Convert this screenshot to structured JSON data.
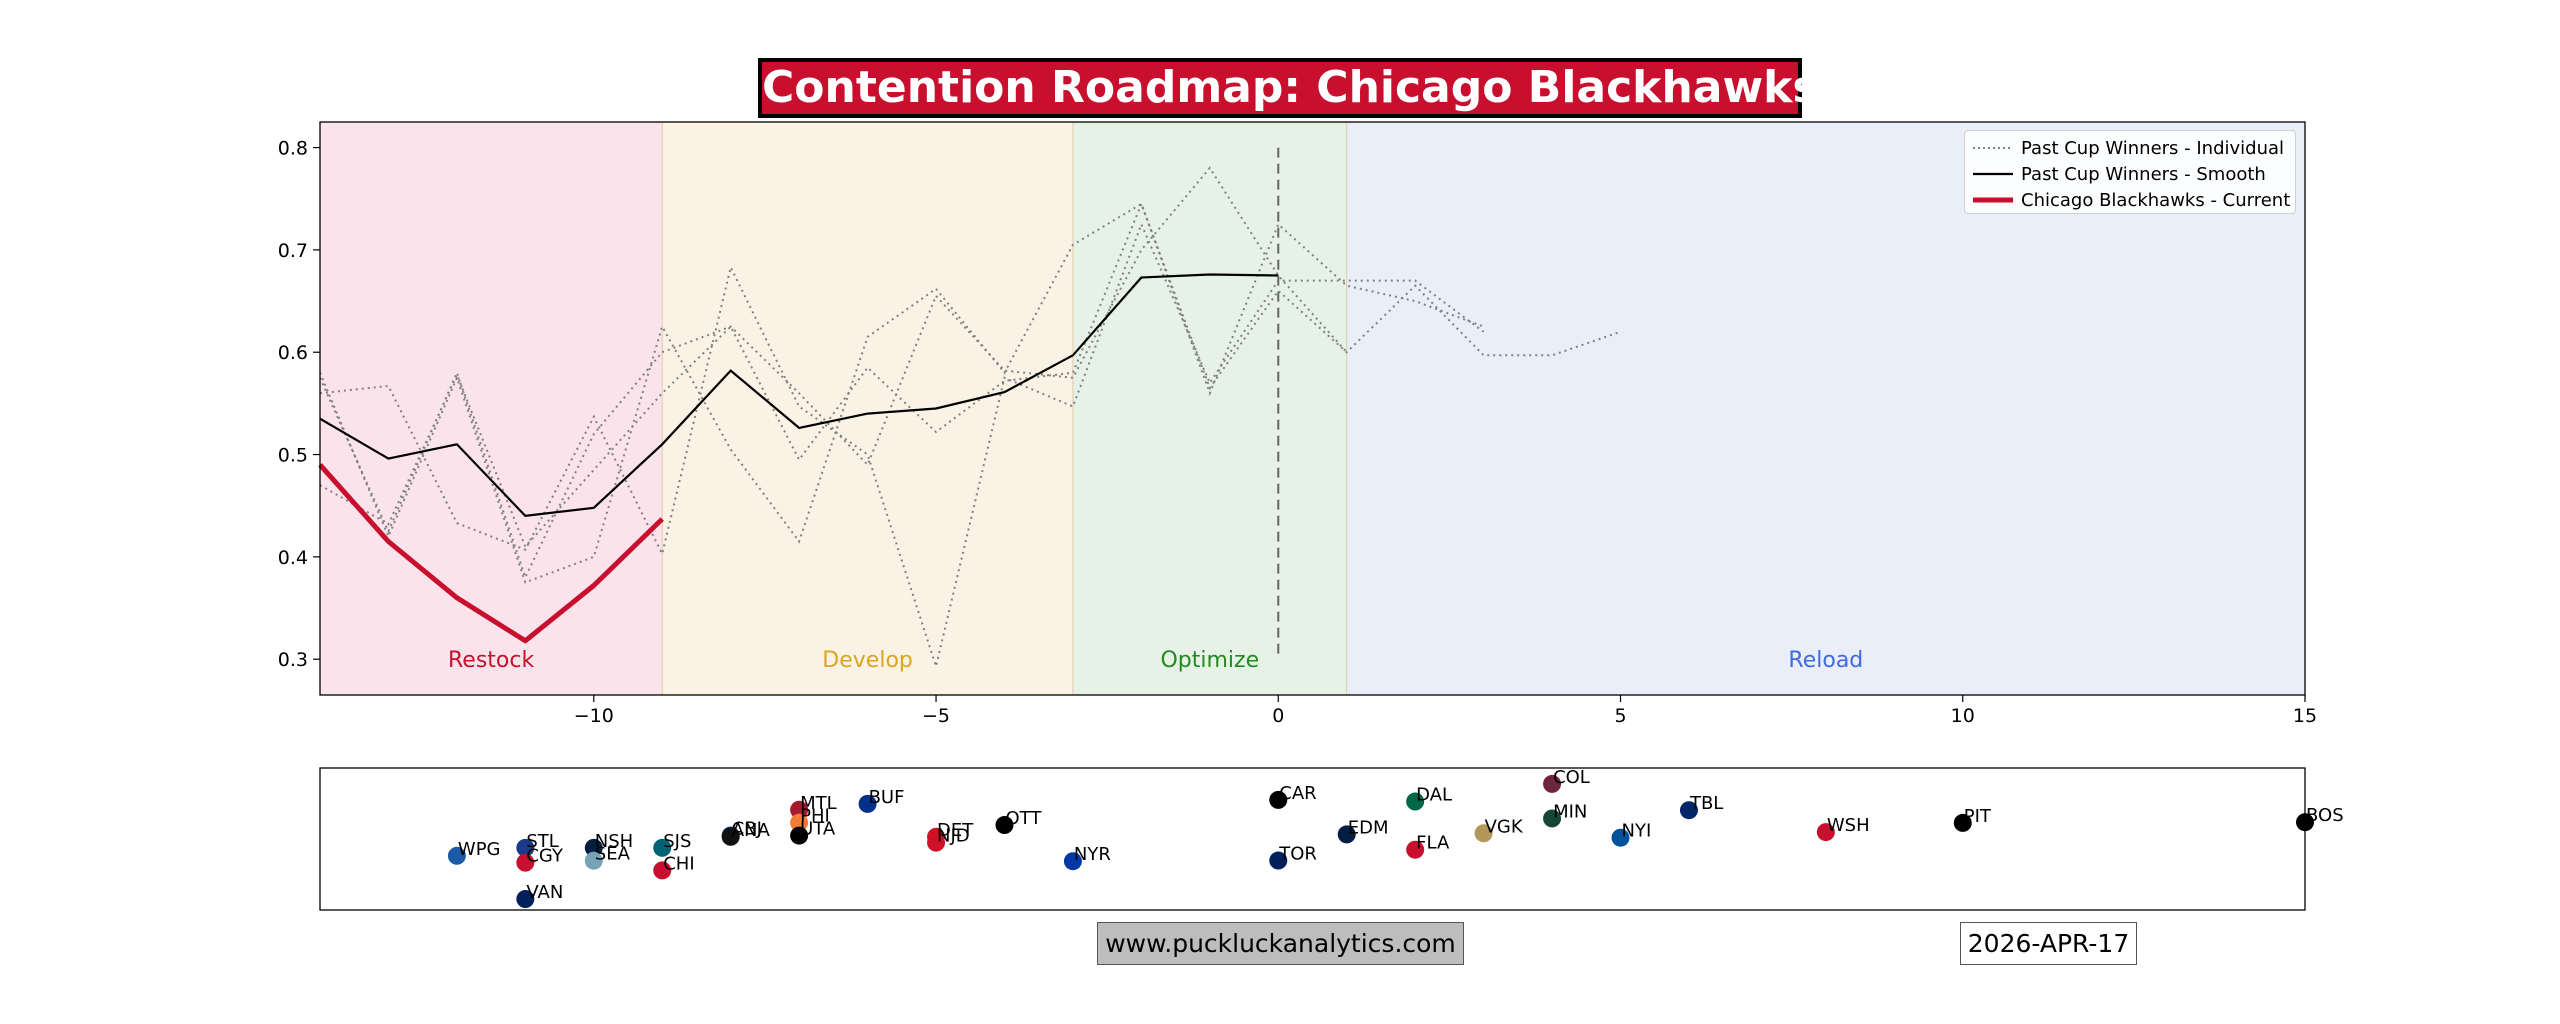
{
  "header": {
    "title": "Contention Roadmap: Chicago Blackhawks"
  },
  "footer": {
    "url": "www.puckluckanalytics.com",
    "date": "2026-APR-17"
  },
  "legend": {
    "items": [
      {
        "label": "Past Cup Winners - Individual",
        "style": "dotted",
        "color": "#808080"
      },
      {
        "label": "Past Cup Winners - Smooth",
        "style": "solid",
        "color": "#000000"
      },
      {
        "label": "Chicago Blackhawks - Current",
        "style": "solid-thick",
        "color": "#C8102E"
      }
    ]
  },
  "chart_data": [
    {
      "type": "line",
      "title": "Contention Roadmap: Chicago Blackhawks",
      "xlabel": "",
      "ylabel": "",
      "xlim": [
        -14,
        15
      ],
      "ylim": [
        0.265,
        0.825
      ],
      "xticks": [
        -10,
        -5,
        0,
        5,
        10,
        15
      ],
      "xtick_labels": [
        "−10",
        "−5",
        "0",
        "5",
        "10",
        "15"
      ],
      "yticks": [
        0.3,
        0.4,
        0.5,
        0.6,
        0.7,
        0.8
      ],
      "ytick_labels": [
        "0.3",
        "0.4",
        "0.5",
        "0.6",
        "0.7",
        "0.8"
      ],
      "grid": false,
      "legend_position": "top-right",
      "zones": [
        {
          "label": "Restock",
          "x0": -14,
          "x1": -9,
          "fill": "#fae3ea",
          "text_color": "#C8102E"
        },
        {
          "label": "Develop",
          "x0": -9,
          "x1": -3,
          "fill": "#faf3e5",
          "text_color": "#DAA520"
        },
        {
          "label": "Optimize",
          "x0": -3,
          "x1": 1,
          "fill": "#e7f2e6",
          "text_color": "#228B22"
        },
        {
          "label": "Reload",
          "x0": 1,
          "x1": 15,
          "fill": "#e9eef9",
          "text_color": "#4169E1"
        }
      ],
      "zone_label_y": 0.3,
      "vline": {
        "x": 0,
        "y0": 0.3,
        "y1": 0.8
      },
      "individual_series": [
        {
          "x": [
            -14,
            -13,
            -12,
            -11,
            -10,
            -9,
            -8,
            -7,
            -6,
            -5,
            -4,
            -3,
            -2,
            -1,
            0,
            1,
            2,
            3
          ],
          "y": [
            0.56,
            0.567,
            0.433,
            0.407,
            0.537,
            0.403,
            0.683,
            0.547,
            0.5,
            0.293,
            0.575,
            0.547,
            0.725,
            0.57,
            0.67,
            0.67,
            0.67,
            0.62
          ]
        },
        {
          "x": [
            -14,
            -13,
            -12,
            -11,
            -10,
            -9,
            -8,
            -7,
            -6,
            -5,
            -4,
            -3,
            -2,
            -1,
            0,
            1,
            2,
            3
          ],
          "y": [
            0.58,
            0.42,
            0.575,
            0.375,
            0.4,
            0.625,
            0.505,
            0.415,
            0.615,
            0.662,
            0.58,
            0.705,
            0.745,
            0.56,
            0.725,
            0.665,
            0.65,
            0.625
          ]
        },
        {
          "x": [
            -14,
            -13,
            -12,
            -11,
            -10,
            -9,
            -8,
            -7,
            -6,
            -5,
            -4,
            -3,
            -2,
            -1,
            0,
            1,
            2,
            3,
            4,
            5
          ],
          "y": [
            0.47,
            0.432,
            0.578,
            0.41,
            0.485,
            0.56,
            0.625,
            0.495,
            0.585,
            0.522,
            0.572,
            0.58,
            0.745,
            0.565,
            0.66,
            0.6,
            0.665,
            0.597,
            0.597,
            0.62
          ]
        },
        {
          "x": [
            -14,
            -13,
            -12,
            -11,
            -10,
            -9,
            -8,
            -7,
            -6,
            -5,
            -4,
            -3,
            -2,
            -1,
            0,
            1
          ],
          "y": [
            0.575,
            0.425,
            0.58,
            0.38,
            0.52,
            0.6,
            0.625,
            0.56,
            0.49,
            0.655,
            0.582,
            0.575,
            0.7,
            0.78,
            0.675,
            0.6
          ]
        }
      ],
      "smooth_series": {
        "name": "Past Cup Winners - Smooth",
        "x": [
          -14,
          -13,
          -12,
          -11,
          -10,
          -9,
          -8,
          -7,
          -6,
          -5,
          -4,
          -3,
          -2,
          -1,
          0
        ],
        "y": [
          0.535,
          0.496,
          0.51,
          0.44,
          0.448,
          0.51,
          0.582,
          0.526,
          0.54,
          0.545,
          0.561,
          0.597,
          0.673,
          0.676,
          0.675
        ]
      },
      "current_series": {
        "name": "Chicago Blackhawks - Current",
        "x": [
          -14,
          -13,
          -12,
          -11,
          -10,
          -9
        ],
        "y": [
          0.49,
          0.415,
          0.36,
          0.318,
          0.372,
          0.437
        ]
      }
    },
    {
      "type": "scatter",
      "xlim": [
        -14,
        15
      ],
      "teams": [
        {
          "label": "WPG",
          "x": -12,
          "y": -0.46,
          "color": "#1a5aa6"
        },
        {
          "label": "STL",
          "x": -11,
          "y": -0.12,
          "color": "#1a3a8a"
        },
        {
          "label": "CGY",
          "x": -11,
          "y": -0.75,
          "color": "#c8102e"
        },
        {
          "label": "VAN",
          "x": -11,
          "y": -2.3,
          "color": "#00205b"
        },
        {
          "label": "NSH",
          "x": -10,
          "y": -0.12,
          "color": "#041e42"
        },
        {
          "label": "SEA",
          "x": -10,
          "y": -0.67,
          "color": "#76a3b5"
        },
        {
          "label": "SJS",
          "x": -9,
          "y": -0.12,
          "color": "#006272"
        },
        {
          "label": "CHI",
          "x": -9,
          "y": -1.08,
          "color": "#c8102e"
        },
        {
          "label": "CBJ",
          "x": -8,
          "y": 0.4,
          "color": "#002654"
        },
        {
          "label": "ANA",
          "x": -8,
          "y": 0.35,
          "color": "#111111"
        },
        {
          "label": "MTL",
          "x": -7,
          "y": 1.5,
          "color": "#a6192e"
        },
        {
          "label": "PHI",
          "x": -7,
          "y": 0.95,
          "color": "#f47a38"
        },
        {
          "label": "UTA",
          "x": -7,
          "y": 0.4,
          "color": "#000000"
        },
        {
          "label": "BUF",
          "x": -6,
          "y": 1.75,
          "color": "#003087"
        },
        {
          "label": "DET",
          "x": -5,
          "y": 0.35,
          "color": "#ce1126"
        },
        {
          "label": "NJD",
          "x": -5,
          "y": 0.1,
          "color": "#ce1126"
        },
        {
          "label": "OTT",
          "x": -4,
          "y": 0.85,
          "color": "#000000"
        },
        {
          "label": "NYR",
          "x": -3,
          "y": -0.69,
          "color": "#0038a8"
        },
        {
          "label": "CAR",
          "x": 0,
          "y": 1.92,
          "color": "#000000"
        },
        {
          "label": "TOR",
          "x": 0,
          "y": -0.66,
          "color": "#00205b"
        },
        {
          "label": "EDM",
          "x": 1,
          "y": 0.45,
          "color": "#041e42"
        },
        {
          "label": "DAL",
          "x": 2,
          "y": 1.85,
          "color": "#006847"
        },
        {
          "label": "FLA",
          "x": 2,
          "y": -0.2,
          "color": "#c8102e"
        },
        {
          "label": "VGK",
          "x": 3,
          "y": 0.5,
          "color": "#b4975a"
        },
        {
          "label": "COL",
          "x": 4,
          "y": 2.6,
          "color": "#6f263d"
        },
        {
          "label": "MIN",
          "x": 4,
          "y": 1.13,
          "color": "#154734"
        },
        {
          "label": "NYI",
          "x": 5,
          "y": 0.31,
          "color": "#00539b"
        },
        {
          "label": "TBL",
          "x": 6,
          "y": 1.48,
          "color": "#002868"
        },
        {
          "label": "WSH",
          "x": 8,
          "y": 0.55,
          "color": "#c8102e"
        },
        {
          "label": "PIT",
          "x": 10,
          "y": 0.94,
          "color": "#000000"
        },
        {
          "label": "BOS",
          "x": 15,
          "y": 0.97,
          "color": "#000000"
        }
      ]
    }
  ]
}
